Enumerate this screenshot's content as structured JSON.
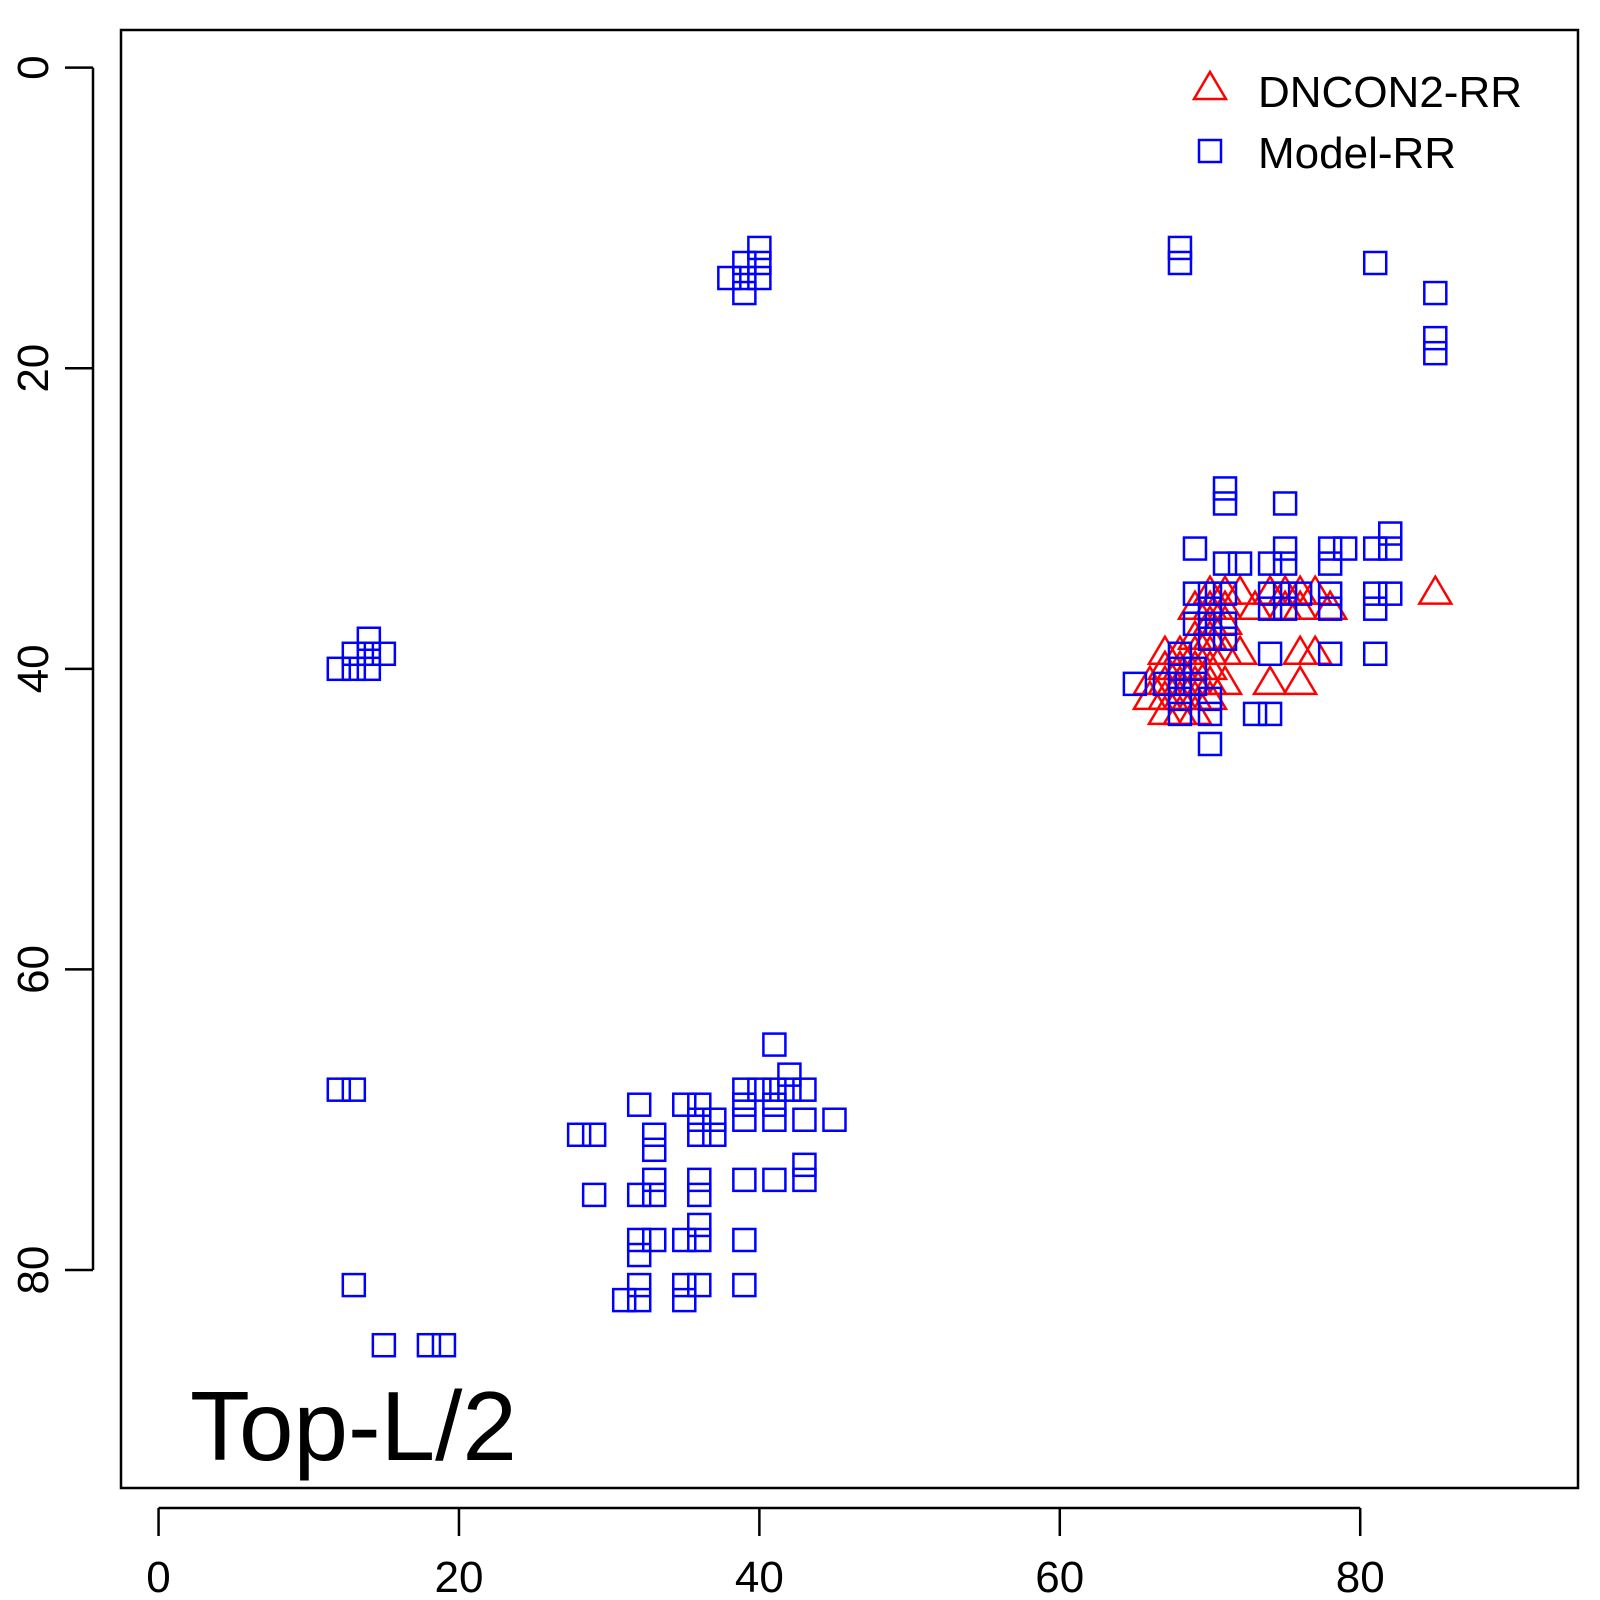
{
  "chart_data": {
    "type": "scatter",
    "title": "",
    "xlabel": "",
    "ylabel": "",
    "xlim": [
      -2.5,
      94.5
    ],
    "ylim": [
      -2.5,
      94.5
    ],
    "y_reversed": true,
    "x_ticks": [
      0,
      20,
      40,
      60,
      80
    ],
    "y_ticks": [
      0,
      20,
      40,
      60,
      80
    ],
    "tick_labels_x": [
      "0",
      "20",
      "40",
      "60",
      "80"
    ],
    "tick_labels_y": [
      "0",
      "20",
      "40",
      "60",
      "80"
    ],
    "grid": false,
    "legend_position": "top-right",
    "annotation": "Top-L/2",
    "series": [
      {
        "name": "DNCON2-RR",
        "marker": "triangle",
        "color": "#ff0000",
        "points": [
          [
            70,
            35
          ],
          [
            71,
            35
          ],
          [
            72,
            35
          ],
          [
            74,
            35
          ],
          [
            75,
            35
          ],
          [
            76,
            35
          ],
          [
            77,
            35
          ],
          [
            85,
            35
          ],
          [
            69,
            36
          ],
          [
            70,
            36
          ],
          [
            71,
            36
          ],
          [
            73,
            36
          ],
          [
            75,
            36
          ],
          [
            76,
            36
          ],
          [
            78,
            36
          ],
          [
            70,
            37
          ],
          [
            71,
            37
          ],
          [
            69,
            38
          ],
          [
            70,
            38
          ],
          [
            67,
            39
          ],
          [
            68,
            39
          ],
          [
            69,
            39
          ],
          [
            70,
            39
          ],
          [
            71,
            39
          ],
          [
            72,
            39
          ],
          [
            76,
            39
          ],
          [
            77,
            39
          ],
          [
            67,
            40
          ],
          [
            68,
            40
          ],
          [
            69,
            40
          ],
          [
            70,
            40
          ],
          [
            66,
            41
          ],
          [
            67,
            41
          ],
          [
            68,
            41
          ],
          [
            69,
            41
          ],
          [
            70,
            41
          ],
          [
            71,
            41
          ],
          [
            74,
            41
          ],
          [
            76,
            41
          ],
          [
            66,
            42
          ],
          [
            67,
            42
          ],
          [
            68,
            42
          ],
          [
            69,
            42
          ],
          [
            70,
            42
          ],
          [
            67,
            43
          ],
          [
            68,
            43
          ],
          [
            69,
            43
          ]
        ]
      },
      {
        "name": "Model-RR",
        "marker": "square",
        "color": "#0000ff",
        "points": [
          [
            40,
            12
          ],
          [
            40,
            13
          ],
          [
            39,
            13
          ],
          [
            40,
            14
          ],
          [
            39,
            14
          ],
          [
            38,
            14
          ],
          [
            39,
            15
          ],
          [
            68,
            12
          ],
          [
            68,
            13
          ],
          [
            81,
            13
          ],
          [
            85,
            15
          ],
          [
            85,
            18
          ],
          [
            85,
            19
          ],
          [
            71,
            28
          ],
          [
            71,
            29
          ],
          [
            75,
            29
          ],
          [
            69,
            32
          ],
          [
            75,
            32
          ],
          [
            78,
            32
          ],
          [
            79,
            32
          ],
          [
            81,
            32
          ],
          [
            82,
            32
          ],
          [
            82,
            31
          ],
          [
            71,
            33
          ],
          [
            72,
            33
          ],
          [
            74,
            33
          ],
          [
            75,
            33
          ],
          [
            78,
            33
          ],
          [
            69,
            35
          ],
          [
            70,
            35
          ],
          [
            71,
            35
          ],
          [
            74,
            35
          ],
          [
            75,
            35
          ],
          [
            76,
            35
          ],
          [
            78,
            35
          ],
          [
            81,
            35
          ],
          [
            82,
            35
          ],
          [
            70,
            36
          ],
          [
            74,
            36
          ],
          [
            75,
            36
          ],
          [
            78,
            36
          ],
          [
            81,
            36
          ],
          [
            69,
            37
          ],
          [
            70,
            37
          ],
          [
            71,
            37
          ],
          [
            70,
            38
          ],
          [
            71,
            38
          ],
          [
            68,
            39
          ],
          [
            74,
            39
          ],
          [
            78,
            39
          ],
          [
            81,
            39
          ],
          [
            68,
            40
          ],
          [
            69,
            40
          ],
          [
            65,
            41
          ],
          [
            67,
            41
          ],
          [
            68,
            41
          ],
          [
            69,
            41
          ],
          [
            68,
            42
          ],
          [
            70,
            42
          ],
          [
            68,
            43
          ],
          [
            70,
            43
          ],
          [
            73,
            43
          ],
          [
            74,
            43
          ],
          [
            70,
            45
          ],
          [
            14,
            38
          ],
          [
            13,
            39
          ],
          [
            14,
            39
          ],
          [
            15,
            39
          ],
          [
            12,
            40
          ],
          [
            13,
            40
          ],
          [
            14,
            40
          ],
          [
            41,
            65
          ],
          [
            42,
            67
          ],
          [
            39,
            68
          ],
          [
            40,
            68
          ],
          [
            41,
            68
          ],
          [
            42,
            68
          ],
          [
            43,
            68
          ],
          [
            32,
            69
          ],
          [
            35,
            69
          ],
          [
            36,
            69
          ],
          [
            39,
            69
          ],
          [
            41,
            69
          ],
          [
            36,
            70
          ],
          [
            37,
            70
          ],
          [
            39,
            70
          ],
          [
            41,
            70
          ],
          [
            43,
            70
          ],
          [
            45,
            70
          ],
          [
            28,
            71
          ],
          [
            29,
            71
          ],
          [
            33,
            71
          ],
          [
            36,
            71
          ],
          [
            37,
            71
          ],
          [
            33,
            72
          ],
          [
            43,
            73
          ],
          [
            33,
            74
          ],
          [
            36,
            74
          ],
          [
            39,
            74
          ],
          [
            41,
            74
          ],
          [
            43,
            74
          ],
          [
            29,
            75
          ],
          [
            32,
            75
          ],
          [
            33,
            75
          ],
          [
            36,
            75
          ],
          [
            36,
            77
          ],
          [
            32,
            78
          ],
          [
            33,
            78
          ],
          [
            35,
            78
          ],
          [
            36,
            78
          ],
          [
            39,
            78
          ],
          [
            32,
            79
          ],
          [
            13,
            81
          ],
          [
            32,
            81
          ],
          [
            35,
            81
          ],
          [
            36,
            81
          ],
          [
            39,
            81
          ],
          [
            31,
            82
          ],
          [
            32,
            82
          ],
          [
            35,
            82
          ],
          [
            12,
            68
          ],
          [
            13,
            68
          ],
          [
            15,
            85
          ],
          [
            18,
            85
          ],
          [
            19,
            85
          ]
        ]
      }
    ]
  }
}
